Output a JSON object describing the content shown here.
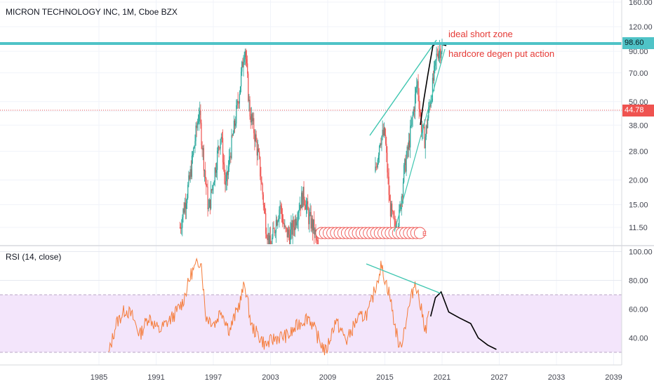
{
  "header": {
    "symbol_line": "MICRON TECHNOLOGY INC, 1M, Cboe BZX"
  },
  "rsi_label": "RSI (14, close)",
  "annotations": {
    "short_zone": "ideal short zone",
    "put_action": "hardcore degen put action"
  },
  "price_badges": {
    "resistance": "98.60",
    "current": "44.78",
    "resistance_color": "#4fc3c7",
    "current_color": "#ef5350"
  },
  "earnings_marker": "E",
  "colors": {
    "up_candle": "#26a69a",
    "down_candle": "#ef5350",
    "rsi_line": "#f57c3a",
    "rsi_band": "#f3e5fb",
    "projection": "#000000",
    "trendline": "#3ec6b0"
  },
  "chart_data": [
    {
      "type": "candlestick",
      "title": "MICRON TECHNOLOGY INC, 1M, Cboe BZX",
      "y_scale": "log",
      "y_ticks": [
        "160.00",
        "120.00",
        "98.60",
        "90.00",
        "70.00",
        "50.00",
        "44.78",
        "38.00",
        "28.00",
        "20.00",
        "15.00",
        "11.50"
      ],
      "x_ticks": [
        "1985",
        "1991",
        "1997",
        "2003",
        "2009",
        "2015",
        "2021",
        "2027",
        "2033",
        "2039"
      ],
      "horizontal_lines": [
        {
          "value": 98.6,
          "label": "98.60",
          "style": "solid"
        },
        {
          "value": 44.78,
          "label": "44.78",
          "style": "dotted"
        }
      ],
      "series": [
        {
          "points": [
            [
              1993.5,
              11.5
            ],
            [
              1994.5,
              20
            ],
            [
              1995.5,
              45
            ],
            [
              1996.0,
              25
            ],
            [
              1996.5,
              14
            ],
            [
              1997.0,
              20
            ],
            [
              1997.8,
              35
            ],
            [
              1998.3,
              18
            ],
            [
              1998.8,
              28
            ],
            [
              1999.3,
              40
            ],
            [
              1999.8,
              60
            ],
            [
              2000.3,
              98.6
            ],
            [
              2000.8,
              45
            ],
            [
              2001.3,
              35
            ],
            [
              2001.8,
              25
            ],
            [
              2002.5,
              12
            ],
            [
              2003.0,
              9
            ],
            [
              2003.5,
              12
            ],
            [
              2004.0,
              15
            ],
            [
              2004.5,
              11
            ],
            [
              2005.0,
              10.5
            ],
            [
              2005.5,
              12
            ],
            [
              2006.0,
              15
            ],
            [
              2006.5,
              17
            ],
            [
              2007.0,
              13
            ],
            [
              2007.5,
              11.5
            ],
            [
              2008.0,
              9
            ],
            [
              2014.0,
              22
            ],
            [
              2014.5,
              33
            ],
            [
              2015.0,
              34
            ],
            [
              2015.5,
              15
            ],
            [
              2016.0,
              11.5
            ],
            [
              2016.5,
              13
            ],
            [
              2017.0,
              22
            ],
            [
              2017.5,
              30
            ],
            [
              2018.0,
              45
            ],
            [
              2018.4,
              64
            ],
            [
              2018.8,
              38
            ],
            [
              2019.2,
              32
            ],
            [
              2019.6,
              45
            ],
            [
              2020.0,
              60
            ],
            [
              2020.5,
              90
            ],
            [
              2021.0,
              95
            ],
            [
              2021.5,
              97
            ]
          ]
        }
      ]
    },
    {
      "type": "line",
      "title": "RSI (14, close)",
      "y_ticks": [
        "100.00",
        "80.00",
        "60.00",
        "40.00"
      ],
      "band": [
        30,
        70
      ],
      "series": [
        {
          "points": [
            [
              1986.0,
              28
            ],
            [
              1986.8,
              50
            ],
            [
              1987.8,
              60
            ],
            [
              1988.5,
              55
            ],
            [
              1989.3,
              42
            ],
            [
              1990.2,
              55
            ],
            [
              1991.3,
              45
            ],
            [
              1992.8,
              55
            ],
            [
              1993.8,
              65
            ],
            [
              1994.7,
              85
            ],
            [
              1995.7,
              95
            ],
            [
              1996.2,
              55
            ],
            [
              1997.2,
              50
            ],
            [
              1997.8,
              60
            ],
            [
              1998.7,
              45
            ],
            [
              1999.8,
              65
            ],
            [
              2000.3,
              78
            ],
            [
              2001.0,
              48
            ],
            [
              2002.5,
              35
            ],
            [
              2003.5,
              40
            ],
            [
              2005.0,
              42
            ],
            [
              2006.0,
              50
            ],
            [
              2007.0,
              55
            ],
            [
              2008.0,
              40
            ],
            [
              2008.8,
              30
            ],
            [
              2009.8,
              52
            ],
            [
              2011.0,
              38
            ],
            [
              2012.0,
              52
            ],
            [
              2013.3,
              58
            ],
            [
              2014.2,
              80
            ],
            [
              2014.6,
              90
            ],
            [
              2015.5,
              70
            ],
            [
              2016.0,
              50
            ],
            [
              2016.6,
              32
            ],
            [
              2017.3,
              55
            ],
            [
              2018.2,
              80
            ],
            [
              2018.8,
              60
            ],
            [
              2019.3,
              45
            ],
            [
              2019.7,
              62
            ]
          ]
        },
        {
          "points": [
            [
              2019.8,
              55
            ],
            [
              2020.3,
              68
            ],
            [
              2020.9,
              72
            ],
            [
              2021.7,
              58
            ],
            [
              2022.8,
              54
            ],
            [
              2024.0,
              50
            ],
            [
              2024.8,
              40
            ],
            [
              2025.8,
              35
            ],
            [
              2026.7,
              32
            ]
          ]
        }
      ]
    }
  ]
}
